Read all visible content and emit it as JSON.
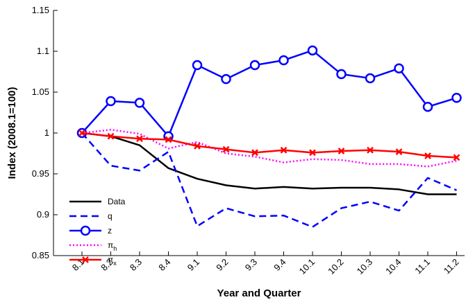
{
  "chart_data": {
    "type": "line",
    "xlabel": "Year and Quarter",
    "ylabel": "Index (2008.1=100)",
    "ylim": [
      0.85,
      1.15
    ],
    "yticks": [
      "0.85",
      "0.9",
      "0.95",
      "1",
      "1.05",
      "1.1",
      "1.15"
    ],
    "categories": [
      "8.1",
      "8.2",
      "8.3",
      "8.4",
      "9.1",
      "9.2",
      "9.3",
      "9.4",
      "10.1",
      "10.2",
      "10.3",
      "10.4",
      "11.1",
      "11.2"
    ],
    "grid": false,
    "legend_position": "bottom-left",
    "series": [
      {
        "name": "Data",
        "color": "#000000",
        "style": "solid",
        "marker": "none",
        "values": [
          1.0,
          0.996,
          0.985,
          0.957,
          0.944,
          0.936,
          0.932,
          0.934,
          0.932,
          0.933,
          0.933,
          0.931,
          0.925,
          0.925
        ]
      },
      {
        "name": "q",
        "color": "#0000ff",
        "style": "dashed",
        "marker": "none",
        "values": [
          1.0,
          0.96,
          0.954,
          0.977,
          0.886,
          0.908,
          0.898,
          0.899,
          0.885,
          0.908,
          0.916,
          0.905,
          0.945,
          0.93
        ]
      },
      {
        "name": "z",
        "color": "#0000ff",
        "style": "solid",
        "marker": "circle",
        "values": [
          1.0,
          1.039,
          1.037,
          0.996,
          1.083,
          1.066,
          1.083,
          1.089,
          1.101,
          1.072,
          1.067,
          1.079,
          1.032,
          1.043
        ]
      },
      {
        "name": "π_h",
        "label_main": "π",
        "label_sub": "h",
        "color": "#ff00ff",
        "style": "dotted",
        "marker": "none",
        "values": [
          1.0,
          1.004,
          0.999,
          0.981,
          0.989,
          0.975,
          0.971,
          0.964,
          0.968,
          0.967,
          0.962,
          0.962,
          0.959,
          0.966
        ]
      },
      {
        "name": "π_x",
        "label_main": "π",
        "label_sub": "x",
        "color": "#ff0000",
        "style": "solid",
        "marker": "x",
        "values": [
          1.0,
          0.996,
          0.993,
          0.992,
          0.984,
          0.98,
          0.976,
          0.979,
          0.976,
          0.978,
          0.979,
          0.977,
          0.972,
          0.97
        ]
      }
    ]
  }
}
